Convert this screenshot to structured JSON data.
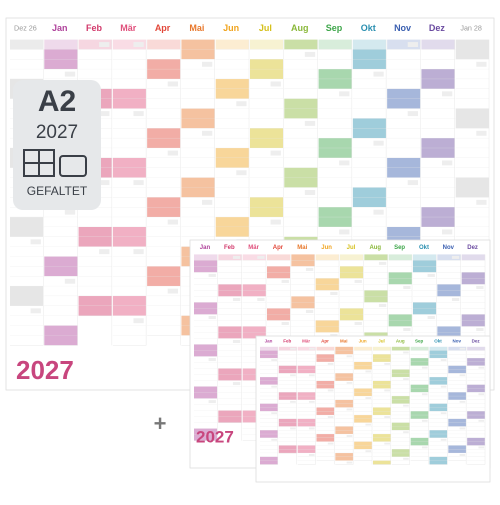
{
  "badge": {
    "size": "A2",
    "year": "2027",
    "note": "GEFALTET"
  },
  "calendar": {
    "year": "2027",
    "plus": "+",
    "lead": {
      "label": "Dez 26",
      "color": "#9a9a9a"
    },
    "months": [
      {
        "label": "Jan",
        "color": "#b0449c"
      },
      {
        "label": "Feb",
        "color": "#d2396b"
      },
      {
        "label": "Mär",
        "color": "#e0507c"
      },
      {
        "label": "Apr",
        "color": "#e2483a"
      },
      {
        "label": "Mai",
        "color": "#e8782c"
      },
      {
        "label": "Jun",
        "color": "#f0a41e"
      },
      {
        "label": "Jul",
        "color": "#d5c01c"
      },
      {
        "label": "Aug",
        "color": "#8ab83a"
      },
      {
        "label": "Sep",
        "color": "#3ea64a"
      },
      {
        "label": "Okt",
        "color": "#2a8fb0"
      },
      {
        "label": "Nov",
        "color": "#3a5fb0"
      },
      {
        "label": "Dez",
        "color": "#6a4aa0"
      }
    ],
    "trail": {
      "label": "Jan 28",
      "color": "#9a9a9a"
    }
  }
}
